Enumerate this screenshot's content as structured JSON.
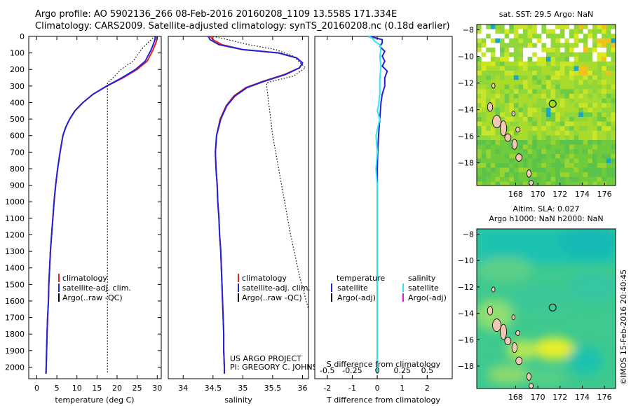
{
  "header": {
    "line1": "Argo profile: AO 5902136_266 08-Feb-2016 20160208_1109 13.558S 171.334E",
    "line2": "Climatology: CARS2009. Satellite-adjusted climatology: synTS_20160208.nc (0.18d earlier)"
  },
  "credit": "©IMOS 15-Feb-2016 20:40:45",
  "project": {
    "line1": "US ARGO PROJECT",
    "line2": "PI: GREGORY C. JOHNSON"
  },
  "colors": {
    "climatology": "#e8221c",
    "satellite": "#1f23d9",
    "argo": "#000000",
    "sal_satellite": "#2ee6ee",
    "sal_argo": "#dd22cc"
  },
  "chart_data": [
    {
      "type": "line",
      "id": "temperature",
      "xlabel": "temperature (deg C)",
      "ylabel": "",
      "xlim": [
        -2,
        31
      ],
      "ylim": [
        2070,
        0
      ],
      "y_reversed": true,
      "xticks": [
        0,
        5,
        10,
        15,
        20,
        25,
        30
      ],
      "yticks": [
        0,
        100,
        200,
        300,
        400,
        500,
        600,
        700,
        800,
        900,
        1000,
        1100,
        1200,
        1300,
        1400,
        1500,
        1600,
        1700,
        1800,
        1900,
        2000
      ],
      "legend": {
        "position": "lower-left",
        "items": [
          "climatology",
          "satellite-adj. clim.",
          "Argo(..raw -QC)"
        ]
      },
      "series": [
        {
          "name": "climatology",
          "style": "solid",
          "color_key": "climatology",
          "points": [
            [
              30,
              0
            ],
            [
              29.8,
              30
            ],
            [
              29,
              80
            ],
            [
              27.5,
              150
            ],
            [
              25,
              200
            ],
            [
              21.5,
              250
            ],
            [
              17.5,
              300
            ],
            [
              14,
              350
            ],
            [
              11.5,
              400
            ],
            [
              9.5,
              450
            ],
            [
              8.2,
              500
            ],
            [
              7.2,
              550
            ],
            [
              6.5,
              600
            ],
            [
              5.8,
              700
            ],
            [
              5.2,
              800
            ],
            [
              4.7,
              900
            ],
            [
              4.3,
              1000
            ],
            [
              4,
              1100
            ],
            [
              3.7,
              1200
            ],
            [
              3.4,
              1300
            ],
            [
              3.2,
              1400
            ],
            [
              3,
              1500
            ],
            [
              2.9,
              1600
            ],
            [
              2.7,
              1700
            ],
            [
              2.55,
              1800
            ],
            [
              2.45,
              1900
            ],
            [
              2.35,
              2000
            ],
            [
              2.3,
              2040
            ]
          ]
        },
        {
          "name": "satellite-adj. clim.",
          "style": "solid",
          "color_key": "satellite",
          "points": [
            [
              29.6,
              0
            ],
            [
              29.3,
              30
            ],
            [
              28.5,
              80
            ],
            [
              27,
              150
            ],
            [
              24.6,
              200
            ],
            [
              21.2,
              250
            ],
            [
              17.4,
              300
            ],
            [
              14,
              350
            ],
            [
              11.5,
              400
            ],
            [
              9.5,
              450
            ],
            [
              8.2,
              500
            ],
            [
              7.2,
              550
            ],
            [
              6.5,
              600
            ],
            [
              5.8,
              700
            ],
            [
              5.2,
              800
            ],
            [
              4.7,
              900
            ],
            [
              4.3,
              1000
            ],
            [
              4,
              1100
            ],
            [
              3.7,
              1200
            ],
            [
              3.4,
              1300
            ],
            [
              3.2,
              1400
            ],
            [
              3,
              1500
            ],
            [
              2.9,
              1600
            ],
            [
              2.7,
              1700
            ],
            [
              2.55,
              1800
            ],
            [
              2.45,
              1900
            ],
            [
              2.35,
              2000
            ],
            [
              2.3,
              2040
            ]
          ]
        },
        {
          "name": "Argo(..raw -QC)",
          "style": "dotted",
          "color_key": "argo",
          "points": [
            [
              29.5,
              0
            ],
            [
              28,
              30
            ],
            [
              26,
              80
            ],
            [
              24,
              150
            ],
            [
              21,
              200
            ],
            [
              19,
              250
            ],
            [
              17.6,
              280
            ],
            [
              17.6,
              2040
            ]
          ]
        }
      ]
    },
    {
      "type": "line",
      "id": "salinity",
      "xlabel": "salinity",
      "ylabel": "",
      "xlim": [
        33.75,
        36.1
      ],
      "ylim": [
        2070,
        0
      ],
      "y_reversed": true,
      "xticks": [
        34,
        34.5,
        35,
        35.5,
        36
      ],
      "legend": {
        "position": "lower-left",
        "items": [
          "climatology",
          "satellite-adj. clim.",
          "Argo(..raw -QC)"
        ]
      },
      "series": [
        {
          "name": "climatology",
          "style": "solid",
          "color_key": "climatology",
          "points": [
            [
              34.45,
              0
            ],
            [
              34.5,
              20
            ],
            [
              34.65,
              50
            ],
            [
              35,
              80
            ],
            [
              35.6,
              100
            ],
            [
              35.9,
              130
            ],
            [
              36,
              160
            ],
            [
              35.95,
              190
            ],
            [
              35.7,
              230
            ],
            [
              35.35,
              270
            ],
            [
              35.05,
              310
            ],
            [
              34.85,
              360
            ],
            [
              34.72,
              420
            ],
            [
              34.62,
              500
            ],
            [
              34.56,
              600
            ],
            [
              34.54,
              700
            ],
            [
              34.55,
              800
            ],
            [
              34.57,
              900
            ],
            [
              34.58,
              1000
            ],
            [
              34.6,
              1100
            ],
            [
              34.61,
              1200
            ],
            [
              34.63,
              1300
            ],
            [
              34.64,
              1400
            ],
            [
              34.65,
              1500
            ],
            [
              34.66,
              1600
            ],
            [
              34.67,
              1700
            ],
            [
              34.68,
              1800
            ],
            [
              34.68,
              1900
            ],
            [
              34.69,
              2000
            ],
            [
              34.69,
              2040
            ]
          ]
        },
        {
          "name": "satellite-adj. clim.",
          "style": "solid",
          "color_key": "satellite",
          "points": [
            [
              34.42,
              0
            ],
            [
              34.45,
              20
            ],
            [
              34.6,
              50
            ],
            [
              35,
              80
            ],
            [
              35.6,
              100
            ],
            [
              35.9,
              130
            ],
            [
              36,
              160
            ],
            [
              35.95,
              190
            ],
            [
              35.72,
              230
            ],
            [
              35.37,
              270
            ],
            [
              35.07,
              310
            ],
            [
              34.87,
              360
            ],
            [
              34.73,
              420
            ],
            [
              34.63,
              500
            ],
            [
              34.56,
              600
            ],
            [
              34.54,
              700
            ],
            [
              34.55,
              800
            ],
            [
              34.57,
              900
            ],
            [
              34.58,
              1000
            ],
            [
              34.6,
              1100
            ],
            [
              34.61,
              1200
            ],
            [
              34.63,
              1300
            ],
            [
              34.64,
              1400
            ],
            [
              34.65,
              1500
            ],
            [
              34.66,
              1600
            ],
            [
              34.67,
              1700
            ],
            [
              34.68,
              1800
            ],
            [
              34.68,
              1900
            ],
            [
              34.69,
              2000
            ],
            [
              34.69,
              2040
            ]
          ]
        },
        {
          "name": "Argo(..raw -QC)",
          "style": "dotted",
          "color_key": "argo",
          "points": [
            [
              34.5,
              0
            ],
            [
              34.75,
              20
            ],
            [
              35.1,
              50
            ],
            [
              35.55,
              80
            ],
            [
              35.85,
              120
            ],
            [
              36.05,
              190
            ],
            [
              35.85,
              240
            ],
            [
              35.4,
              280
            ],
            [
              35.4,
              300
            ],
            [
              35.5,
              600
            ],
            [
              35.65,
              900
            ],
            [
              35.8,
              1200
            ],
            [
              35.95,
              1450
            ],
            [
              36.1,
              1650
            ]
          ]
        }
      ]
    },
    {
      "type": "line",
      "id": "difference",
      "xlabel": "T difference from climatology",
      "xlabel_top": "S difference from climatology",
      "xlim": [
        -2.5,
        3
      ],
      "ylim": [
        2070,
        0
      ],
      "y_reversed": true,
      "xticks": [
        -2,
        -1,
        0,
        1,
        2
      ],
      "xticks_top": [
        -0.5,
        -0.25,
        0,
        0.25,
        0.5
      ],
      "legend": {
        "position": "lower-center",
        "temperature": {
          "title": "temperature",
          "items": [
            "satellite",
            "Argo(-adj)"
          ]
        },
        "salinity": {
          "title": "salinity",
          "items": [
            "satellite",
            "Argo(-adj)"
          ]
        }
      },
      "series": [
        {
          "name": "temperature satellite",
          "color_key": "satellite",
          "points": [
            [
              -0.3,
              0
            ],
            [
              0.2,
              20
            ],
            [
              0.2,
              40
            ],
            [
              0.1,
              60
            ],
            [
              0.3,
              90
            ],
            [
              0.2,
              120
            ],
            [
              0.3,
              150
            ],
            [
              0.2,
              180
            ],
            [
              0.4,
              210
            ],
            [
              0.3,
              250
            ],
            [
              0.3,
              300
            ],
            [
              0.2,
              350
            ],
            [
              0.15,
              400
            ],
            [
              0.1,
              500
            ],
            [
              0.05,
              600
            ],
            [
              0.02,
              700
            ],
            [
              0,
              800
            ],
            [
              0,
              900
            ],
            [
              0,
              1000
            ],
            [
              0,
              1200
            ],
            [
              0,
              1500
            ],
            [
              0,
              1800
            ],
            [
              0,
              2040
            ]
          ]
        },
        {
          "name": "salinity satellite",
          "color_key": "sal_satellite",
          "points": [
            [
              -0.35,
              0
            ],
            [
              -0.2,
              10
            ],
            [
              -0.1,
              30
            ],
            [
              0.1,
              50
            ],
            [
              0.15,
              80
            ],
            [
              0.1,
              120
            ],
            [
              0.15,
              180
            ],
            [
              0.1,
              260
            ],
            [
              0.1,
              350
            ],
            [
              0.05,
              420
            ],
            [
              0,
              450
            ],
            [
              0.1,
              500
            ],
            [
              -0.05,
              600
            ],
            [
              0,
              700
            ],
            [
              -0.05,
              800
            ],
            [
              0,
              900
            ],
            [
              0,
              1000
            ],
            [
              0,
              1200
            ],
            [
              0,
              1500
            ],
            [
              0,
              1800
            ],
            [
              0,
              2040
            ]
          ]
        }
      ]
    },
    {
      "type": "heatmap",
      "id": "sst-map",
      "title": "sat. SST: 29.5 Argo: NaN",
      "xlim": [
        164.5,
        177
      ],
      "ylim": [
        -19.7,
        -7.6
      ],
      "xticks": [
        168,
        170,
        172,
        174,
        176
      ],
      "yticks": [
        -8,
        -10,
        -12,
        -14,
        -16,
        -18
      ],
      "marker": {
        "lon": 171.334,
        "lat": -13.558
      }
    },
    {
      "type": "heatmap",
      "id": "sla-map",
      "title": "Altim. SLA: 0.027",
      "subtitle": "Argo h1000: NaN h2000: NaN",
      "xlim": [
        164.5,
        177
      ],
      "ylim": [
        -19.7,
        -7.6
      ],
      "xticks": [
        168,
        170,
        172,
        174,
        176
      ],
      "yticks": [
        -8,
        -10,
        -12,
        -14,
        -16,
        -18
      ],
      "marker": {
        "lon": 171.334,
        "lat": -13.558
      }
    }
  ]
}
